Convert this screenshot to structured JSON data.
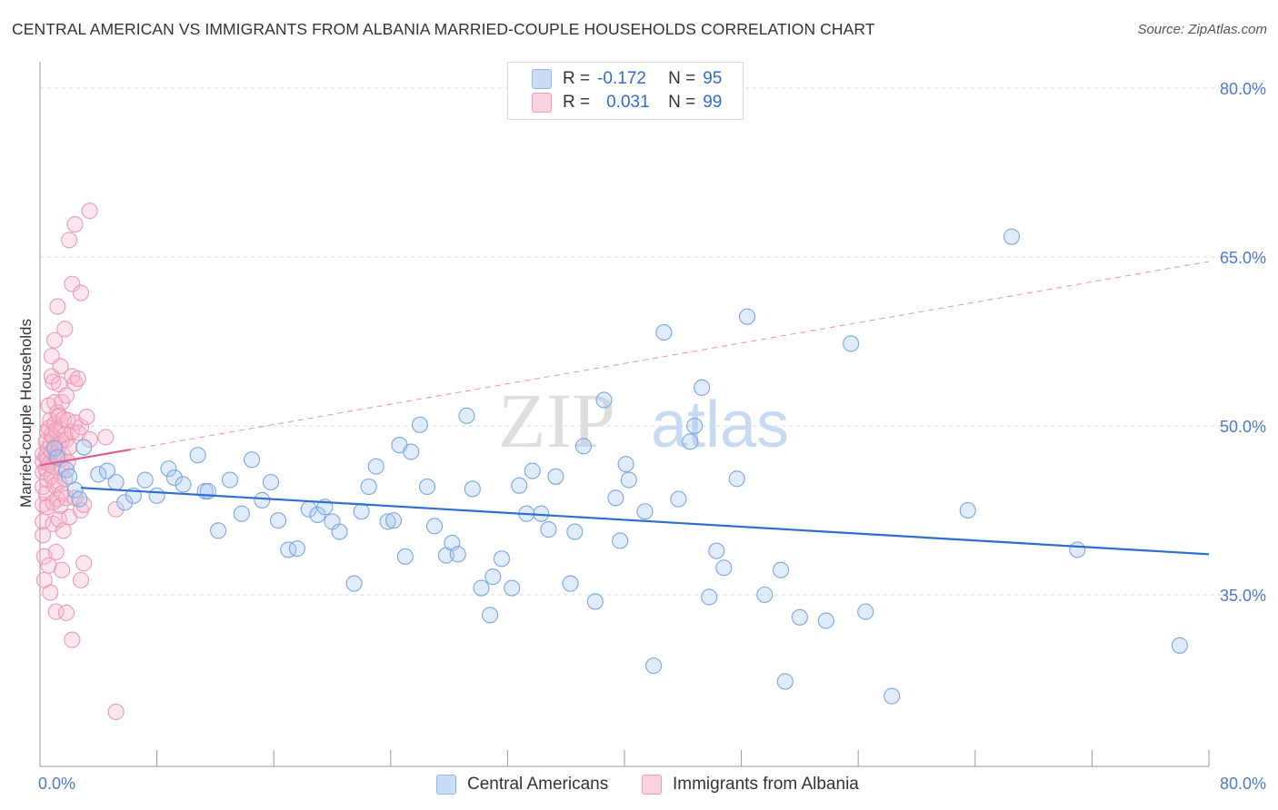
{
  "header": {
    "title": "CENTRAL AMERICAN VS IMMIGRANTS FROM ALBANIA MARRIED-COUPLE HOUSEHOLDS CORRELATION CHART",
    "source": "Source: ZipAtlas.com"
  },
  "watermark": {
    "part1": "ZIP",
    "part2": "atlas"
  },
  "legend": {
    "rows": [
      {
        "r_label": "R =",
        "r_value": "-0.172",
        "n_label": "N =",
        "n_value": "95",
        "color": "#a9c8f0"
      },
      {
        "r_label": "R =",
        "r_value": "0.031",
        "n_label": "N =",
        "n_value": "99",
        "color": "#f7b8ca"
      }
    ],
    "bottom": [
      {
        "label": "Central Americans",
        "color": "#a9c8f0"
      },
      {
        "label": "Immigrants from Albania",
        "color": "#f7b8ca"
      }
    ]
  },
  "axes": {
    "y_title": "Married-couple Households",
    "y_ticks": [
      "80.0%",
      "65.0%",
      "50.0%",
      "35.0%"
    ],
    "x_tick_left": "0.0%",
    "x_tick_right": "80.0%"
  },
  "chart_data": {
    "type": "scatter",
    "title": "CENTRAL AMERICAN VS IMMIGRANTS FROM ALBANIA MARRIED-COUPLE HOUSEHOLDS CORRELATION CHART",
    "xlabel": "",
    "ylabel": "Married-couple Households",
    "xlim": [
      0,
      80
    ],
    "ylim": [
      20,
      82
    ],
    "y_gridlines": [
      80,
      65,
      50,
      35
    ],
    "legend_placement": "top-center",
    "colors": {
      "central": "#4f8ad9",
      "albania": "#e9769c",
      "central_line": "#2f6dd0",
      "albania_line": "#e45c8a"
    },
    "series": [
      {
        "name": "Central Americans",
        "r": -0.172,
        "n": 95,
        "trend": {
          "x": [
            0,
            80
          ],
          "y": [
            44.5,
            38.6
          ]
        },
        "points": [
          [
            1.0,
            48.0
          ],
          [
            1.2,
            47.2
          ],
          [
            1.8,
            46.1
          ],
          [
            2.0,
            45.5
          ],
          [
            2.4,
            44.3
          ],
          [
            2.7,
            43.5
          ],
          [
            3.0,
            48.1
          ],
          [
            4.0,
            45.7
          ],
          [
            4.6,
            46.0
          ],
          [
            5.2,
            45.0
          ],
          [
            5.8,
            43.2
          ],
          [
            6.4,
            43.8
          ],
          [
            7.2,
            45.2
          ],
          [
            8.0,
            43.8
          ],
          [
            8.8,
            46.2
          ],
          [
            9.2,
            45.4
          ],
          [
            9.8,
            44.8
          ],
          [
            10.8,
            47.4
          ],
          [
            11.3,
            44.2
          ],
          [
            11.5,
            44.2
          ],
          [
            12.2,
            40.7
          ],
          [
            13.0,
            45.2
          ],
          [
            13.8,
            42.2
          ],
          [
            14.5,
            47.0
          ],
          [
            15.2,
            43.4
          ],
          [
            15.8,
            45.0
          ],
          [
            16.3,
            41.6
          ],
          [
            17.0,
            39.0
          ],
          [
            17.6,
            39.1
          ],
          [
            18.4,
            42.6
          ],
          [
            19.0,
            42.1
          ],
          [
            19.5,
            42.8
          ],
          [
            20.0,
            41.5
          ],
          [
            20.5,
            40.6
          ],
          [
            21.5,
            36.0
          ],
          [
            22.0,
            42.4
          ],
          [
            22.5,
            44.6
          ],
          [
            23.0,
            46.4
          ],
          [
            23.8,
            41.5
          ],
          [
            24.2,
            41.6
          ],
          [
            24.6,
            48.3
          ],
          [
            25.0,
            38.4
          ],
          [
            25.4,
            47.7
          ],
          [
            26.0,
            50.1
          ],
          [
            26.5,
            44.6
          ],
          [
            27.0,
            41.1
          ],
          [
            27.8,
            38.5
          ],
          [
            28.2,
            39.6
          ],
          [
            28.6,
            38.6
          ],
          [
            29.2,
            50.9
          ],
          [
            29.6,
            44.4
          ],
          [
            30.2,
            35.6
          ],
          [
            30.8,
            33.2
          ],
          [
            31.0,
            36.6
          ],
          [
            31.6,
            38.2
          ],
          [
            32.3,
            35.6
          ],
          [
            32.8,
            44.7
          ],
          [
            33.3,
            42.2
          ],
          [
            33.7,
            46.0
          ],
          [
            34.3,
            42.2
          ],
          [
            34.8,
            40.8
          ],
          [
            35.3,
            45.5
          ],
          [
            36.3,
            36.0
          ],
          [
            36.6,
            40.6
          ],
          [
            37.2,
            48.2
          ],
          [
            38.0,
            34.4
          ],
          [
            38.6,
            52.3
          ],
          [
            39.4,
            43.6
          ],
          [
            39.7,
            39.8
          ],
          [
            40.1,
            46.6
          ],
          [
            40.3,
            45.2
          ],
          [
            41.4,
            42.4
          ],
          [
            42.0,
            28.7
          ],
          [
            42.7,
            58.3
          ],
          [
            43.7,
            43.5
          ],
          [
            44.5,
            48.6
          ],
          [
            44.8,
            50.0
          ],
          [
            45.3,
            53.4
          ],
          [
            45.8,
            34.8
          ],
          [
            46.3,
            38.9
          ],
          [
            46.8,
            37.4
          ],
          [
            47.7,
            45.3
          ],
          [
            48.4,
            59.7
          ],
          [
            49.6,
            35.0
          ],
          [
            50.7,
            37.2
          ],
          [
            51.0,
            27.3
          ],
          [
            52.0,
            33.0
          ],
          [
            53.8,
            32.7
          ],
          [
            55.5,
            57.3
          ],
          [
            56.5,
            33.5
          ],
          [
            58.3,
            26.0
          ],
          [
            63.5,
            42.5
          ],
          [
            66.5,
            66.8
          ],
          [
            71.0,
            39.0
          ],
          [
            78.0,
            30.5
          ]
        ]
      },
      {
        "name": "Immigrants from Albania",
        "r": 0.031,
        "n": 99,
        "trend": {
          "x": [
            0,
            6.2
          ],
          "y": [
            46.5,
            47.9
          ]
        },
        "points": [
          [
            0.2,
            47.5
          ],
          [
            0.2,
            46.8
          ],
          [
            0.2,
            45.9
          ],
          [
            0.2,
            44.6
          ],
          [
            0.2,
            43.0
          ],
          [
            0.2,
            41.5
          ],
          [
            0.2,
            40.3
          ],
          [
            0.3,
            38.4
          ],
          [
            0.3,
            36.3
          ],
          [
            0.4,
            48.6
          ],
          [
            0.4,
            47.3
          ],
          [
            0.4,
            46.2
          ],
          [
            0.4,
            44.0
          ],
          [
            0.5,
            49.5
          ],
          [
            0.5,
            47.0
          ],
          [
            0.5,
            45.2
          ],
          [
            0.5,
            42.8
          ],
          [
            0.6,
            51.8
          ],
          [
            0.6,
            49.8
          ],
          [
            0.6,
            48.0
          ],
          [
            0.6,
            46.6
          ],
          [
            0.6,
            37.6
          ],
          [
            0.7,
            50.5
          ],
          [
            0.7,
            48.4
          ],
          [
            0.7,
            35.2
          ],
          [
            0.8,
            56.2
          ],
          [
            0.8,
            54.4
          ],
          [
            0.8,
            49.2
          ],
          [
            0.8,
            47.7
          ],
          [
            0.8,
            45.5
          ],
          [
            0.9,
            53.9
          ],
          [
            0.9,
            48.9
          ],
          [
            0.9,
            46.4
          ],
          [
            0.9,
            43.2
          ],
          [
            0.9,
            41.3
          ],
          [
            1.0,
            57.6
          ],
          [
            1.0,
            52.1
          ],
          [
            1.0,
            50.2
          ],
          [
            1.0,
            48.1
          ],
          [
            1.0,
            44.7
          ],
          [
            1.1,
            49.6
          ],
          [
            1.1,
            47.2
          ],
          [
            1.1,
            38.8
          ],
          [
            1.1,
            33.5
          ],
          [
            1.2,
            60.6
          ],
          [
            1.2,
            51.2
          ],
          [
            1.2,
            47.6
          ],
          [
            1.2,
            43.5
          ],
          [
            1.3,
            53.7
          ],
          [
            1.3,
            50.9
          ],
          [
            1.3,
            48.3
          ],
          [
            1.3,
            45.0
          ],
          [
            1.3,
            41.7
          ],
          [
            1.4,
            55.3
          ],
          [
            1.4,
            49.7
          ],
          [
            1.4,
            47.0
          ],
          [
            1.4,
            42.9
          ],
          [
            1.5,
            52.1
          ],
          [
            1.5,
            48.7
          ],
          [
            1.5,
            46.2
          ],
          [
            1.5,
            44.0
          ],
          [
            1.5,
            37.2
          ],
          [
            1.6,
            50.6
          ],
          [
            1.6,
            47.4
          ],
          [
            1.6,
            40.7
          ],
          [
            1.7,
            58.6
          ],
          [
            1.7,
            49.2
          ],
          [
            1.7,
            45.3
          ],
          [
            1.8,
            52.7
          ],
          [
            1.8,
            48.8
          ],
          [
            1.8,
            43.6
          ],
          [
            1.8,
            33.4
          ],
          [
            1.9,
            50.5
          ],
          [
            1.9,
            46.8
          ],
          [
            2.0,
            66.5
          ],
          [
            2.0,
            48.1
          ],
          [
            2.0,
            41.9
          ],
          [
            2.2,
            62.6
          ],
          [
            2.2,
            54.4
          ],
          [
            2.2,
            49.5
          ],
          [
            2.2,
            31.0
          ],
          [
            2.4,
            67.9
          ],
          [
            2.4,
            53.8
          ],
          [
            2.4,
            50.3
          ],
          [
            2.4,
            43.6
          ],
          [
            2.6,
            54.2
          ],
          [
            2.6,
            49.4
          ],
          [
            2.8,
            61.8
          ],
          [
            2.8,
            49.9
          ],
          [
            2.8,
            42.5
          ],
          [
            2.8,
            36.3
          ],
          [
            3.0,
            37.8
          ],
          [
            3.0,
            43.0
          ],
          [
            3.2,
            50.8
          ],
          [
            3.4,
            69.1
          ],
          [
            3.4,
            48.8
          ],
          [
            4.5,
            49.0
          ],
          [
            5.2,
            42.6
          ],
          [
            5.2,
            24.6
          ]
        ]
      }
    ]
  }
}
